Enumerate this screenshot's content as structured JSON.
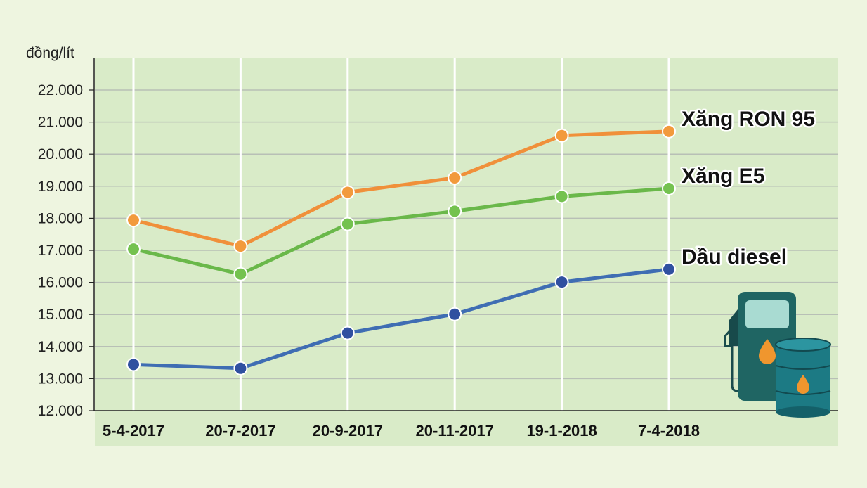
{
  "chart_data": {
    "type": "line",
    "ylabel": "đồng/lít",
    "categories": [
      "5-4-2017",
      "20-7-2017",
      "20-9-2017",
      "20-11-2017",
      "19-1-2018",
      "7-4-2018"
    ],
    "ylim": [
      12000,
      23000
    ],
    "yticks": [
      12000,
      13000,
      14000,
      15000,
      16000,
      17000,
      18000,
      19000,
      20000,
      21000,
      22000
    ],
    "ytick_labels": [
      "12.000",
      "13.000",
      "14.000",
      "15.000",
      "16.000",
      "17.000",
      "18.000",
      "19.000",
      "20.000",
      "21.000",
      "22.000"
    ],
    "grid": true,
    "legend": "inline labels at right end of each line",
    "series": [
      {
        "name": "Xăng RON 95",
        "color": "#f0903a",
        "values": [
          17940,
          17130,
          18810,
          19260,
          20580,
          20710
        ]
      },
      {
        "name": "Xăng E5",
        "color": "#6ab84a",
        "values": [
          17040,
          16260,
          17820,
          18220,
          18680,
          18930
        ]
      },
      {
        "name": "Dầu diesel",
        "color": "#3f6db3",
        "values": [
          13440,
          13320,
          14420,
          15010,
          16010,
          16410
        ]
      }
    ]
  },
  "colors": {
    "page_background": "#eef5e0",
    "plot_background": "#d9ebc8",
    "grid_horizontal": "#b8bfb6",
    "grid_vertical": "#ffffff",
    "marker_fill_ron95": "#f29a3c",
    "marker_fill_e5": "#74c24f",
    "marker_fill_diesel": "#3050a0",
    "pump_body": "#1f6563",
    "pump_screen": "#a9dbd2",
    "barrel": "#1c7a84",
    "drop": "#f0962e"
  },
  "icons": {
    "decoration": [
      "fuel-pump-icon",
      "oil-barrel-icon"
    ]
  }
}
